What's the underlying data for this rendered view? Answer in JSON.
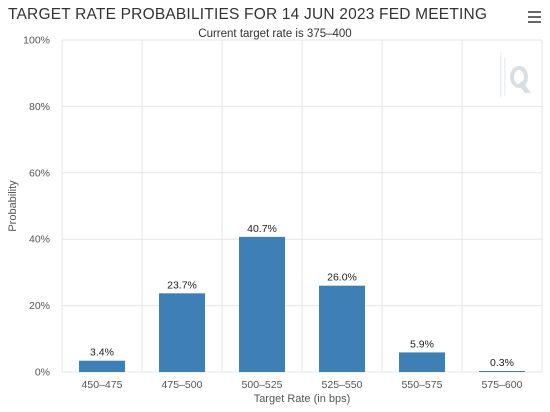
{
  "colors": {
    "bar": "#3e7fb5",
    "grid": "#e6e6e6",
    "text": "#333333"
  },
  "menu_icon": "hamburger-menu-icon",
  "logo_icon": "q-watermark-icon",
  "chart_data": {
    "type": "bar",
    "title": "TARGET RATE PROBABILITIES FOR 14 JUN 2023 FED MEETING",
    "subtitle": "Current target rate is 375–400",
    "xlabel": "Target Rate (in bps)",
    "ylabel": "Probability",
    "categories": [
      "450–475",
      "475–500",
      "500–525",
      "525–550",
      "550–575",
      "575–600"
    ],
    "values": [
      3.4,
      23.7,
      40.7,
      26.0,
      5.9,
      0.3
    ],
    "data_labels": [
      "3.4%",
      "23.7%",
      "40.7%",
      "26.0%",
      "5.9%",
      "0.3%"
    ],
    "ylim": [
      0,
      100
    ],
    "yticks": [
      0,
      20,
      40,
      60,
      80,
      100
    ],
    "ytick_labels": [
      "0%",
      "20%",
      "40%",
      "60%",
      "80%",
      "100%"
    ],
    "grid": true,
    "legend": "none"
  }
}
